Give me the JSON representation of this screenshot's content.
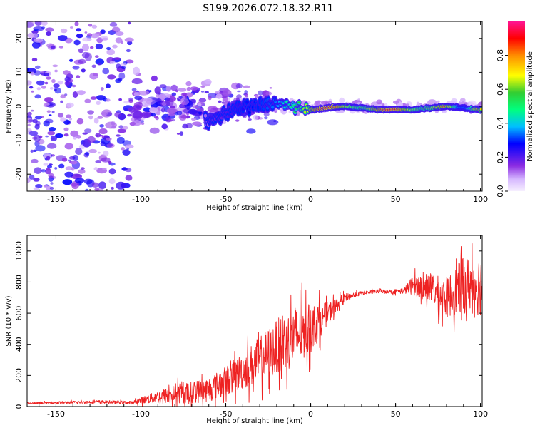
{
  "title": "S199.2026.072.18.32.R11",
  "chart_data": [
    {
      "type": "heatmap",
      "xlabel": "Height of straight line (km)",
      "ylabel": "Frequency (Hz)",
      "xlim": [
        -167,
        101
      ],
      "ylim": [
        -25,
        25
      ],
      "xticks": [
        -150,
        -100,
        -50,
        0,
        50,
        100
      ],
      "yticks": [
        -20,
        -10,
        0,
        10,
        20
      ],
      "colorbar": {
        "label": "Normalized spectral amplitude",
        "range": [
          0,
          1
        ],
        "ticks": [
          "0.0",
          "0.2",
          "0.4",
          "0.6",
          "0.8"
        ]
      },
      "ridge": {
        "points": [
          [
            -60,
            -5
          ],
          [
            -50,
            -2
          ],
          [
            -40,
            0
          ],
          [
            -25,
            1
          ],
          [
            -10,
            0
          ],
          [
            0,
            -1
          ],
          [
            20,
            0
          ],
          [
            40,
            -1
          ],
          [
            60,
            -1
          ],
          [
            80,
            0
          ],
          [
            100,
            -1
          ]
        ],
        "amplitude": "increases from ~0.2 near -60 km to ~0.9 between 10 and 80 km"
      }
    },
    {
      "type": "line",
      "xlabel": "Height of straight line (km)",
      "ylabel": "SNR (10 * v/v)",
      "xlim": [
        -167,
        101
      ],
      "ylim": [
        0,
        1100
      ],
      "xticks": [
        -150,
        -100,
        -50,
        0,
        50,
        100
      ],
      "yticks": [
        0,
        200,
        400,
        600,
        800,
        1000
      ],
      "series": [
        {
          "name": "SNR",
          "color": "#ee2222",
          "x": [
            -167,
            -150,
            -125,
            -105,
            -100,
            -90,
            -80,
            -70,
            -60,
            -50,
            -40,
            -30,
            -20,
            -10,
            0,
            10,
            20,
            30,
            40,
            50,
            55,
            60,
            70,
            80,
            90,
            101
          ],
          "y": [
            20,
            25,
            30,
            25,
            40,
            60,
            80,
            90,
            110,
            160,
            230,
            300,
            380,
            450,
            500,
            600,
            700,
            730,
            740,
            740,
            745,
            780,
            760,
            700,
            780,
            780
          ],
          "noise": [
            5,
            8,
            10,
            10,
            20,
            40,
            60,
            70,
            80,
            100,
            120,
            150,
            180,
            200,
            160,
            70,
            25,
            12,
            12,
            15,
            20,
            60,
            90,
            130,
            180,
            200
          ]
        }
      ]
    }
  ]
}
